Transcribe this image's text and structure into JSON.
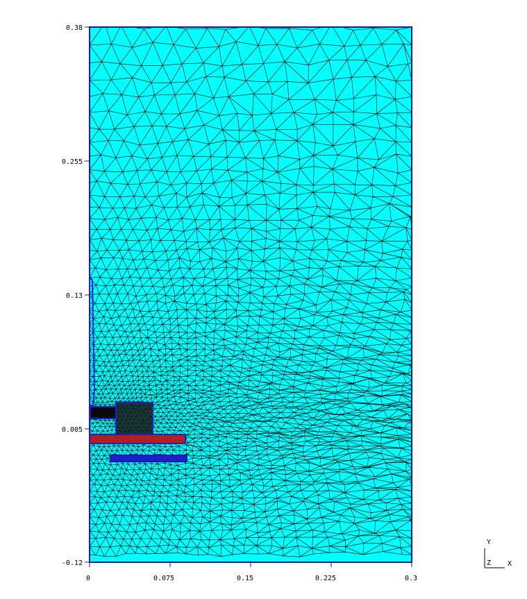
{
  "plot": {
    "y_ticks": [
      "0.38",
      "0.255",
      "0.13",
      "0.005",
      "-0.12"
    ],
    "x_ticks": [
      "0",
      "0.075",
      "0.15",
      "0.225",
      "0.3"
    ],
    "y_range": [
      -0.12,
      0.38
    ],
    "x_range": [
      0,
      0.3
    ]
  },
  "axes_triad": {
    "y_label": "Y",
    "z_label": "Z",
    "x_label": "X"
  },
  "colors": {
    "background": "#00ffff",
    "mesh_edges": "#000000",
    "boundary": "#1a1aa8",
    "conductor_blue": "#1e1ed0",
    "conductor_red": "#b02020",
    "dark_region": "#1a1a1a"
  }
}
